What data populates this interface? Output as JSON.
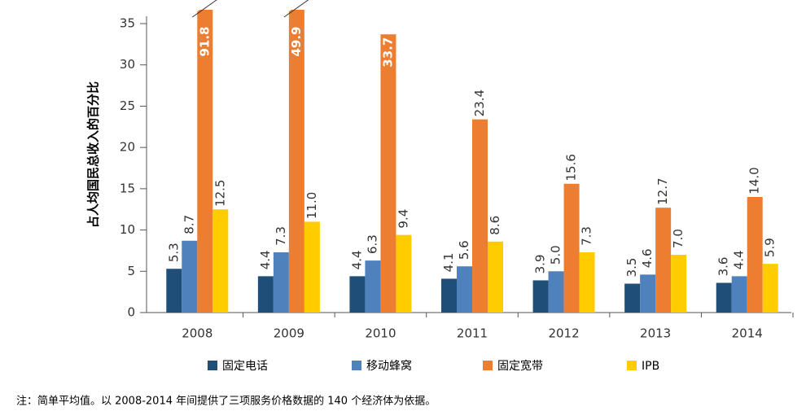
{
  "chart_data": {
    "type": "bar",
    "y_label": "占人均国民总收入的百分比",
    "categories": [
      "2008",
      "2009",
      "2010",
      "2011",
      "2012",
      "2013",
      "2014"
    ],
    "series": [
      {
        "name": "固定电话",
        "color": "#1f4e79",
        "values": [
          5.3,
          4.4,
          4.4,
          4.1,
          3.9,
          3.5,
          3.6
        ],
        "value_labels": [
          "5.3",
          "4.4",
          "4.4",
          "4.1",
          "3.9",
          "3.5",
          "3.6"
        ]
      },
      {
        "name": "移动蜂窝",
        "color": "#4f81bd",
        "values": [
          8.7,
          7.3,
          6.3,
          5.6,
          5.0,
          4.6,
          4.4
        ],
        "value_labels": [
          "8.7",
          "7.3",
          "6.3",
          "5.6",
          "5.0",
          "4.6",
          "4.4"
        ]
      },
      {
        "name": "固定宽带",
        "color": "#ed7d31",
        "values": [
          91.8,
          49.9,
          33.7,
          23.4,
          15.6,
          12.7,
          14.0
        ],
        "value_labels": [
          "91.8",
          "49.9",
          "33.7",
          "23.4",
          "15.6",
          "12.7",
          "14.0"
        ]
      },
      {
        "name": "IPB",
        "color": "#ffcc00",
        "values": [
          12.5,
          11.0,
          9.4,
          8.6,
          7.3,
          7.0,
          5.9
        ],
        "value_labels": [
          "12.5",
          "11.0",
          "9.4",
          "8.6",
          "7.3",
          "7.0",
          "5.9"
        ]
      }
    ],
    "ylim": [
      0,
      35
    ],
    "yticks": [
      0,
      5,
      10,
      15,
      20,
      25,
      30,
      35
    ],
    "grid": false,
    "legend": "bottom",
    "note": "注：简单平均值。以 2008-2014 年间提供了三项服务价格数据的 140 个经济体为依据。"
  }
}
